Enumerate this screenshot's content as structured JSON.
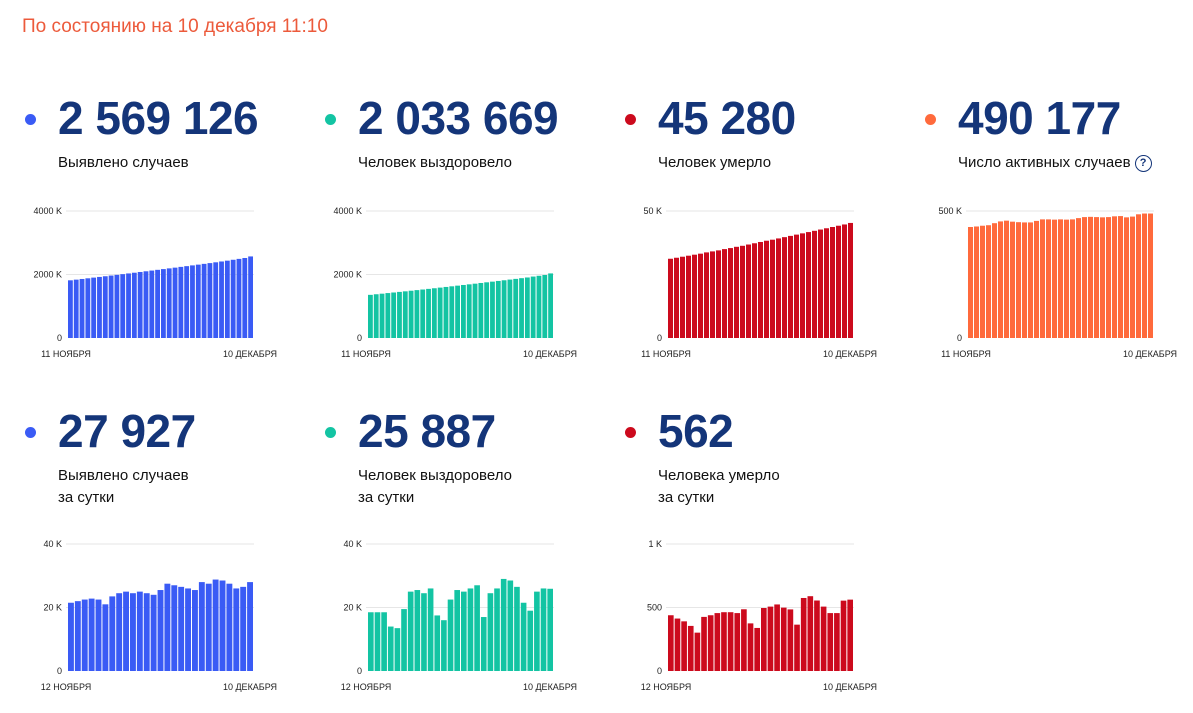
{
  "header": {
    "status": "По состоянию на 10 декабря 11:10",
    "status_color": "#ec5a3b"
  },
  "colors": {
    "blue": "#3a5bf5",
    "teal": "#13c4a3",
    "red": "#cc0a1d",
    "orange": "#ff6a3c",
    "number": "#143579"
  },
  "cards": [
    {
      "id": "confirmed-total",
      "value": "2 569 126",
      "label": [
        "Выявлено случаев"
      ],
      "color": "#3a5bf5",
      "help": false,
      "chart_data": {
        "type": "bar",
        "x_start": "11 НОЯБРЯ",
        "x_end": "10 ДЕКАБРЯ",
        "ylim": [
          0,
          4000
        ],
        "ytick_values": [
          0,
          2000,
          4000
        ],
        "yticks": [
          "0",
          "2000 K",
          "4000 K"
        ],
        "values": [
          1817,
          1838,
          1859,
          1880,
          1902,
          1923,
          1945,
          1967,
          1989,
          2011,
          2033,
          2056,
          2079,
          2101,
          2124,
          2147,
          2170,
          2193,
          2216,
          2240,
          2263,
          2287,
          2311,
          2335,
          2359,
          2384,
          2410,
          2436,
          2464,
          2492,
          2520,
          2569
        ]
      }
    },
    {
      "id": "recovered-total",
      "value": "2 033 669",
      "label": [
        "Человек выздоровело"
      ],
      "color": "#13c4a3",
      "help": false,
      "chart_data": {
        "type": "bar",
        "x_start": "11 НОЯБРЯ",
        "x_end": "10 ДЕКАБРЯ",
        "ylim": [
          0,
          4000
        ],
        "ytick_values": [
          0,
          2000,
          4000
        ],
        "yticks": [
          "0",
          "2000 K",
          "4000 K"
        ],
        "values": [
          1359,
          1378,
          1396,
          1415,
          1433,
          1452,
          1470,
          1489,
          1508,
          1527,
          1547,
          1567,
          1587,
          1608,
          1628,
          1649,
          1670,
          1690,
          1711,
          1733,
          1754,
          1775,
          1797,
          1818,
          1840,
          1862,
          1884,
          1906,
          1935,
          1960,
          1985,
          2034
        ]
      }
    },
    {
      "id": "deaths-total",
      "value": "45 280",
      "label": [
        "Человек умерло"
      ],
      "color": "#cc0a1d",
      "help": false,
      "chart_data": {
        "type": "bar",
        "x_start": "11 НОЯБРЯ",
        "x_end": "10 ДЕКАБРЯ",
        "ylim": [
          0,
          54
        ],
        "ytick_values": [
          0,
          50
        ],
        "yticks": [
          "0",
          "50 K"
        ],
        "values": [
          31.2,
          31.6,
          32.0,
          32.4,
          32.8,
          33.2,
          33.7,
          34.1,
          34.5,
          35.0,
          35.4,
          35.9,
          36.3,
          36.8,
          37.3,
          37.8,
          38.3,
          38.7,
          39.2,
          39.7,
          40.2,
          40.7,
          41.2,
          41.7,
          42.2,
          42.7,
          43.2,
          43.7,
          44.2,
          44.7,
          45.3
        ]
      }
    },
    {
      "id": "active-total",
      "value": "490 177",
      "label": [
        "Число активных случаев"
      ],
      "color": "#ff6a3c",
      "help": true,
      "help_symbol": "?",
      "chart_data": {
        "type": "bar",
        "x_start": "11 НОЯБРЯ",
        "x_end": "10 ДЕКАБРЯ",
        "ylim": [
          0,
          540
        ],
        "ytick_values": [
          0,
          500
        ],
        "yticks": [
          "0",
          "500 K"
        ],
        "values": [
          437,
          439,
          442,
          444,
          452,
          459,
          462,
          458,
          456,
          455,
          455,
          461,
          467,
          467,
          466,
          467,
          466,
          467,
          472,
          476,
          477,
          476,
          475,
          476,
          479,
          480,
          475,
          478,
          487,
          490,
          490
        ]
      }
    },
    {
      "id": "confirmed-daily",
      "value": "27 927",
      "label": [
        "Выявлено случаев",
        "за сутки"
      ],
      "color": "#3a5bf5",
      "help": false,
      "chart_data": {
        "type": "bar",
        "x_start": "12 НОЯБРЯ",
        "x_end": "10 ДЕКАБРЯ",
        "ylim": [
          0,
          40
        ],
        "ytick_values": [
          0,
          20,
          40
        ],
        "yticks": [
          "0",
          "20 K",
          "40 K"
        ],
        "values": [
          21.5,
          22.0,
          22.5,
          22.8,
          22.5,
          21.0,
          23.5,
          24.5,
          25.0,
          24.5,
          25.0,
          24.5,
          24.0,
          25.5,
          27.5,
          27.0,
          26.5,
          26.0,
          25.5,
          28.0,
          27.5,
          28.8,
          28.5,
          27.5,
          26.0,
          26.5,
          28.0
        ]
      }
    },
    {
      "id": "recovered-daily",
      "value": "25 887",
      "label": [
        "Человек выздоровело",
        "за сутки"
      ],
      "color": "#13c4a3",
      "help": false,
      "chart_data": {
        "type": "bar",
        "x_start": "12 НОЯБРЯ",
        "x_end": "10 ДЕКАБРЯ",
        "ylim": [
          0,
          40
        ],
        "ytick_values": [
          0,
          20,
          40
        ],
        "yticks": [
          "0",
          "20 K",
          "40 K"
        ],
        "values": [
          18.5,
          18.5,
          18.5,
          14.0,
          13.5,
          19.5,
          25.0,
          25.5,
          24.5,
          26.0,
          17.5,
          16.0,
          22.5,
          25.5,
          25.0,
          26.0,
          27.0,
          17.0,
          24.5,
          26.0,
          29.0,
          28.5,
          26.5,
          21.5,
          19.0,
          25.0,
          26.0,
          25.9
        ]
      }
    },
    {
      "id": "deaths-daily",
      "value": "562",
      "label": [
        "Человека умерло",
        "за сутки"
      ],
      "color": "#cc0a1d",
      "help": false,
      "chart_data": {
        "type": "bar",
        "x_start": "12 НОЯБРЯ",
        "x_end": "10 ДЕКАБРЯ",
        "ylim": [
          0,
          1000
        ],
        "ytick_values": [
          0,
          500,
          1000
        ],
        "yticks": [
          "0",
          "500",
          "1 K"
        ],
        "values": [
          439,
          413,
          391,
          355,
          302,
          426,
          439,
          456,
          463,
          463,
          456,
          486,
          375,
          339,
          496,
          507,
          524,
          499,
          485,
          365,
          575,
          589,
          555,
          507,
          456,
          456,
          554,
          562
        ]
      }
    }
  ]
}
